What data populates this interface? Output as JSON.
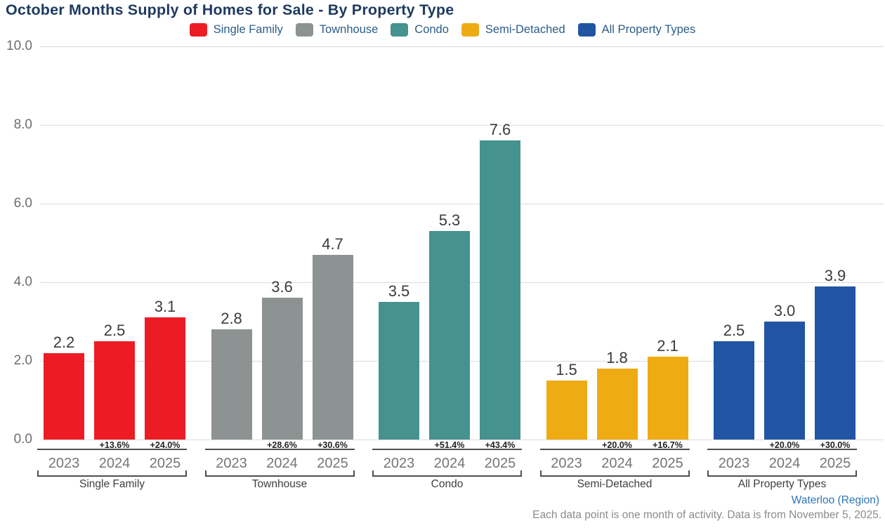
{
  "title": "October Months Supply of Homes for Sale - By Property Type",
  "footer": {
    "region_link": "Waterloo (Region)",
    "note": "Each data point is one month of activity. Data is from November 5, 2025."
  },
  "chart_data": {
    "type": "bar",
    "title": "October Months Supply of Homes for Sale - By Property Type",
    "xlabel": "",
    "ylabel": "",
    "ylim": [
      0,
      10
    ],
    "grid": true,
    "legend_position": "top",
    "yticks": [
      {
        "value": 0,
        "label": "0.0"
      },
      {
        "value": 2,
        "label": "2.0"
      },
      {
        "value": 4,
        "label": "4.0"
      },
      {
        "value": 6,
        "label": "6.0"
      },
      {
        "value": 8,
        "label": "8.0"
      },
      {
        "value": 10,
        "label": "10.0"
      }
    ],
    "categories": [
      "2023",
      "2024",
      "2025"
    ],
    "legend": [
      {
        "label": "Single Family",
        "color": "#ed1c24"
      },
      {
        "label": "Townhouse",
        "color": "#8c9392"
      },
      {
        "label": "Condo",
        "color": "#45928f"
      },
      {
        "label": "Semi-Detached",
        "color": "#eeab14"
      },
      {
        "label": "All Property Types",
        "color": "#2155a4"
      }
    ],
    "groups": [
      {
        "label": "Single Family",
        "color": "#ed1c24",
        "values": [
          2.2,
          2.5,
          3.1
        ],
        "value_labels": [
          "2.2",
          "2.5",
          "3.1"
        ],
        "pct_change": [
          null,
          "+13.6%",
          "+24.0%"
        ]
      },
      {
        "label": "Townhouse",
        "color": "#8c9392",
        "values": [
          2.8,
          3.6,
          4.7
        ],
        "value_labels": [
          "2.8",
          "3.6",
          "4.7"
        ],
        "pct_change": [
          null,
          "+28.6%",
          "+30.6%"
        ]
      },
      {
        "label": "Condo",
        "color": "#45928f",
        "values": [
          3.5,
          5.3,
          7.6
        ],
        "value_labels": [
          "3.5",
          "5.3",
          "7.6"
        ],
        "pct_change": [
          null,
          "+51.4%",
          "+43.4%"
        ]
      },
      {
        "label": "Semi-Detached",
        "color": "#eeab14",
        "values": [
          1.5,
          1.8,
          2.1
        ],
        "value_labels": [
          "1.5",
          "1.8",
          "2.1"
        ],
        "pct_change": [
          null,
          "+20.0%",
          "+16.7%"
        ]
      },
      {
        "label": "All Property Types",
        "color": "#2155a4",
        "values": [
          2.5,
          3.0,
          3.9
        ],
        "value_labels": [
          "2.5",
          "3.0",
          "3.9"
        ],
        "pct_change": [
          null,
          "+20.0%",
          "+30.0%"
        ]
      }
    ]
  }
}
